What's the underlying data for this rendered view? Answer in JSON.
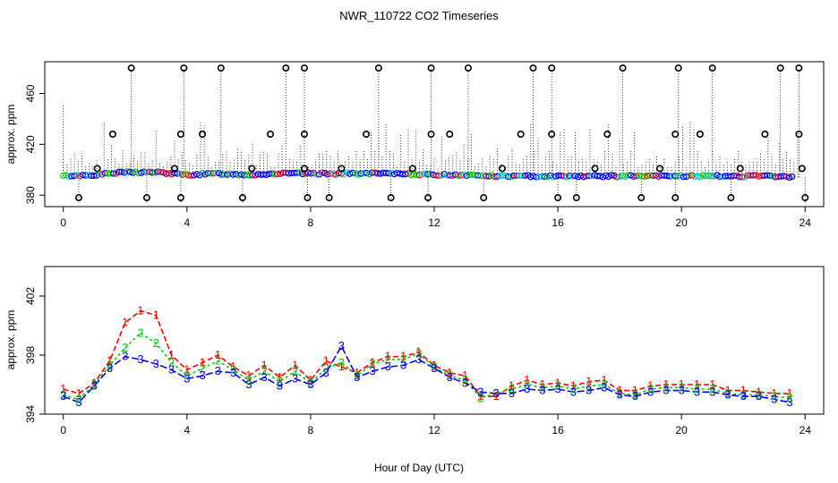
{
  "figure": {
    "title": "NWR_110722  CO2 Timeseries",
    "xlabel": "Hour of Day (UTC)"
  },
  "colors": {
    "series_1": "#ff0000",
    "series_2": "#00cc00",
    "series_3": "#0000ff",
    "cyan": "#00cccc",
    "outlier": "#000000",
    "axis": "#000000",
    "spike": "#000000"
  },
  "chart_data": [
    {
      "type": "scatter",
      "panel": "top",
      "title": "",
      "xlabel": "",
      "ylabel": "approx. ppm",
      "xlim": [
        -0.6,
        24.6
      ],
      "ylim": [
        371,
        485
      ],
      "xticks": [
        0,
        4,
        8,
        12,
        16,
        20,
        24
      ],
      "yticks": [
        380,
        420,
        460
      ],
      "grid": false,
      "legend": "none",
      "baseline": {
        "x": [
          0,
          1,
          2,
          3,
          4,
          5,
          6,
          7,
          8,
          9,
          10,
          11,
          12,
          13,
          14,
          15,
          16,
          17,
          18,
          19,
          20,
          21,
          22,
          23,
          23.6
        ],
        "y": [
          395,
          396,
          398,
          398,
          396,
          397,
          396,
          397,
          397,
          397,
          397,
          397,
          396,
          396,
          395,
          395,
          395,
          395,
          395,
          395,
          395,
          395,
          395,
          395,
          394
        ]
      },
      "outliers_high": [
        2.2,
        3.9,
        5.1,
        7.2,
        7.8,
        10.2,
        11.9,
        13.1,
        15.2,
        15.8,
        18.1,
        19.9,
        21.0,
        23.2,
        23.8
      ],
      "outliers_mid": [
        1.6,
        3.8,
        4.5,
        6.7,
        7.8,
        9.8,
        11.9,
        12.5,
        14.8,
        15.8,
        17.6,
        19.8,
        20.6,
        22.7,
        23.8
      ],
      "outliers_low_mid": [
        1.1,
        3.6,
        6.1,
        7.8,
        9.0,
        11.3,
        14.2,
        17.2,
        19.3,
        21.9,
        23.9
      ],
      "outliers_low": [
        0.5,
        2.7,
        3.8,
        5.8,
        7.9,
        8.6,
        10.6,
        11.8,
        13.6,
        16.0,
        16.6,
        18.7,
        19.8,
        21.6,
        24.0
      ]
    },
    {
      "type": "line",
      "panel": "bottom",
      "title": "",
      "xlabel": "Hour of Day (UTC)",
      "ylabel": "approx. ppm",
      "xlim": [
        -0.6,
        24.6
      ],
      "ylim": [
        394,
        404
      ],
      "xticks": [
        0,
        4,
        8,
        12,
        16,
        20,
        24
      ],
      "yticks": [
        394,
        398,
        402
      ],
      "grid": false,
      "legend": "none",
      "x": [
        0,
        0.5,
        1,
        1.5,
        2,
        2.5,
        3,
        3.5,
        4,
        4.5,
        5,
        5.5,
        6,
        6.5,
        7,
        7.5,
        8,
        8.5,
        9,
        9.5,
        10,
        10.5,
        11,
        11.5,
        12,
        12.5,
        13,
        13.5,
        14,
        14.5,
        15,
        15.5,
        16,
        16.5,
        17,
        17.5,
        18,
        18.5,
        19,
        19.5,
        20,
        20.5,
        21,
        21.5,
        22,
        22.5,
        23,
        23.5
      ],
      "series": [
        {
          "name": "1",
          "marker": "1",
          "values": [
            395.7,
            395.4,
            396.1,
            397.6,
            400.2,
            401.0,
            400.7,
            398.0,
            397.0,
            397.5,
            398.0,
            397.2,
            396.6,
            397.3,
            396.5,
            397.3,
            396.3,
            397.6,
            397.2,
            396.8,
            397.5,
            397.9,
            397.9,
            398.2,
            397.3,
            396.8,
            396.6,
            395.2,
            395.2,
            395.9,
            396.3,
            396.0,
            396.1,
            395.9,
            396.2,
            396.3,
            395.6,
            395.6,
            395.9,
            396.0,
            396.0,
            396.0,
            396.0,
            395.6,
            395.6,
            395.5,
            395.4,
            395.4
          ]
        },
        {
          "name": "2",
          "marker": "2",
          "values": [
            395.3,
            395.0,
            396.0,
            397.3,
            398.5,
            399.5,
            398.8,
            397.5,
            396.6,
            397.1,
            397.6,
            397.0,
            396.3,
            396.9,
            396.2,
            396.9,
            396.1,
            397.1,
            397.5,
            396.6,
            397.4,
            397.7,
            397.7,
            398.1,
            397.2,
            396.6,
            396.3,
            395.1,
            395.4,
            395.7,
            396.0,
            395.8,
            395.9,
            395.7,
            395.9,
            396.0,
            395.4,
            395.3,
            395.7,
            395.8,
            395.8,
            395.7,
            395.7,
            395.4,
            395.3,
            395.3,
            395.2,
            395.1
          ]
        },
        {
          "name": "3",
          "marker": "3",
          "values": [
            395.2,
            394.8,
            395.9,
            397.1,
            397.9,
            397.7,
            397.4,
            397.0,
            396.4,
            396.6,
            396.9,
            396.8,
            396.0,
            396.5,
            395.9,
            396.4,
            396.0,
            396.8,
            398.6,
            396.5,
            396.9,
            397.2,
            397.3,
            397.7,
            397.1,
            396.5,
            396.1,
            395.5,
            395.4,
            395.4,
            395.7,
            395.6,
            395.7,
            395.5,
            395.6,
            395.8,
            395.3,
            395.2,
            395.5,
            395.6,
            395.6,
            395.5,
            395.5,
            395.3,
            395.2,
            395.2,
            395.0,
            394.8
          ]
        }
      ]
    }
  ]
}
